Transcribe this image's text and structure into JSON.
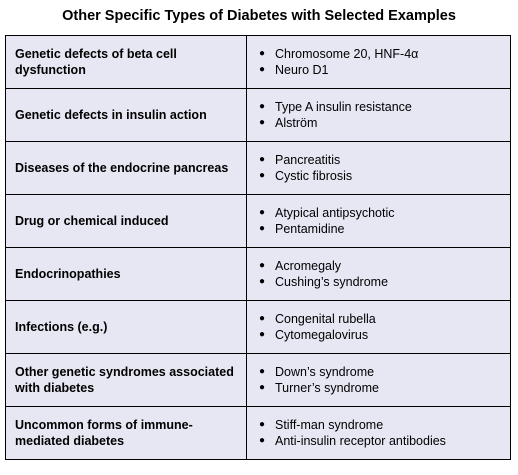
{
  "title": "Other Specific Types of Diabetes with Selected Examples",
  "rows": [
    {
      "type": "Genetic defects of beta cell dysfunction",
      "examples": [
        "Chromosome 20, HNF-4α",
        "Neuro D1"
      ]
    },
    {
      "type": "Genetic defects in insulin action",
      "examples": [
        "Type A insulin resistance",
        "Alström"
      ]
    },
    {
      "type": "Diseases of the endocrine pancreas",
      "examples": [
        "Pancreatitis",
        "Cystic fibrosis"
      ]
    },
    {
      "type": "Drug or chemical induced",
      "examples": [
        "Atypical antipsychotic",
        "Pentamidine"
      ]
    },
    {
      "type": "Endocrinopathies",
      "examples": [
        "Acromegaly",
        "Cushing’s syndrome"
      ]
    },
    {
      "type": "Infections (e.g.)",
      "examples": [
        "Congenital rubella",
        "Cytomegalovirus"
      ]
    },
    {
      "type": "Other genetic syndromes associated with diabetes",
      "examples": [
        "Down’s syndrome",
        "Turner’s syndrome"
      ]
    },
    {
      "type": "Uncommon forms of immune-mediated diabetes",
      "examples": [
        "Stiff-man syndrome",
        "Anti-insulin receptor antibodies"
      ]
    }
  ],
  "colors": {
    "cell_background": "#e7e7f4",
    "border": "#000000"
  }
}
